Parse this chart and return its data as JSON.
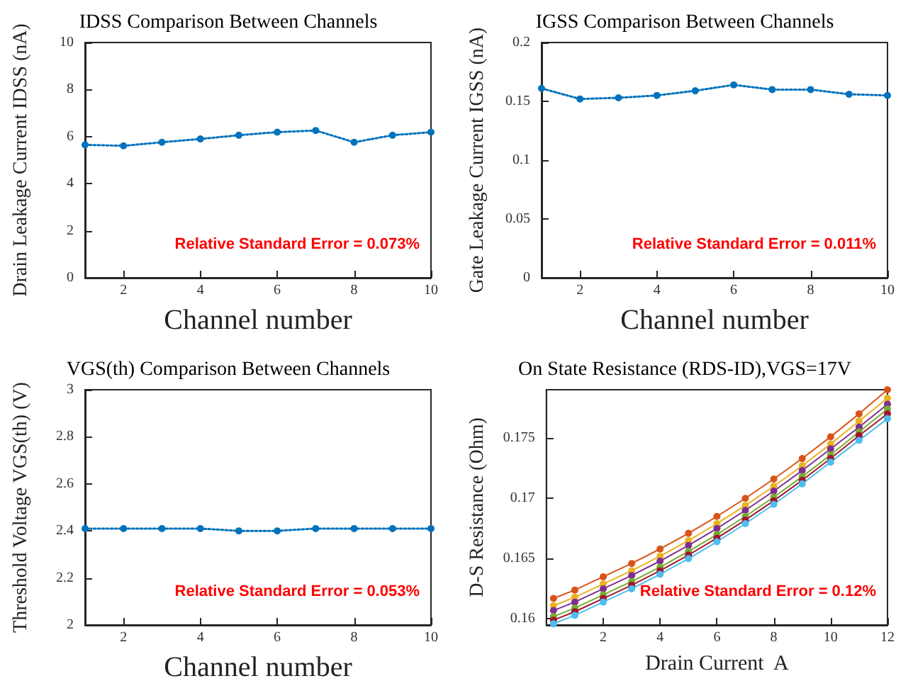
{
  "chart_data": [
    {
      "type": "line",
      "title": "IDSS Comparison Between Channels",
      "xlabel": "Channel number",
      "ylabel": "Drain Leakage Current IDSS (nA)",
      "x": [
        1,
        2,
        3,
        4,
        5,
        6,
        7,
        8,
        9,
        10
      ],
      "series": [
        {
          "color": "#0072bd",
          "values": [
            5.65,
            5.61,
            5.76,
            5.9,
            6.06,
            6.19,
            6.26,
            5.76,
            6.06,
            6.19
          ]
        }
      ],
      "xlim": [
        1,
        10
      ],
      "xticks": [
        2,
        4,
        6,
        8,
        10
      ],
      "ylim": [
        0,
        10
      ],
      "yticks": [
        0,
        2,
        4,
        6,
        8,
        10
      ],
      "grid": false,
      "marker": "circle",
      "line_style": "dotted",
      "annotations": [
        "Relative Standard Error = 0.073%"
      ]
    },
    {
      "type": "line",
      "title": "IGSS Comparison Between Channels",
      "xlabel": "Channel number",
      "ylabel": "Gate Leakage Current IGSS (nA)",
      "x": [
        1,
        2,
        3,
        4,
        5,
        6,
        7,
        8,
        9,
        10
      ],
      "series": [
        {
          "color": "#0072bd",
          "values": [
            0.161,
            0.152,
            0.153,
            0.155,
            0.159,
            0.164,
            0.16,
            0.16,
            0.156,
            0.155
          ]
        }
      ],
      "xlim": [
        1,
        10
      ],
      "xticks": [
        2,
        4,
        6,
        8,
        10
      ],
      "ylim": [
        0,
        0.2
      ],
      "yticks": [
        0,
        0.05,
        0.1,
        0.15,
        0.2
      ],
      "grid": false,
      "marker": "circle",
      "line_style": "dotted",
      "annotations": [
        "Relative Standard Error = 0.011%"
      ]
    },
    {
      "type": "line",
      "title": "VGS(th) Comparison Between Channels",
      "xlabel": "Channel number",
      "ylabel": "Threshold Voltage VGS(th) (V)",
      "x": [
        1,
        2,
        3,
        4,
        5,
        6,
        7,
        8,
        9,
        10
      ],
      "series": [
        {
          "color": "#0072bd",
          "values": [
            2.41,
            2.41,
            2.41,
            2.41,
            2.4,
            2.4,
            2.41,
            2.41,
            2.41,
            2.41
          ]
        }
      ],
      "xlim": [
        1,
        10
      ],
      "xticks": [
        2,
        4,
        6,
        8,
        10
      ],
      "ylim": [
        2,
        3
      ],
      "yticks": [
        2,
        2.2,
        2.4,
        2.6,
        2.8,
        3
      ],
      "grid": false,
      "marker": "circle",
      "line_style": "dotted",
      "annotations": [
        "Relative Standard Error = 0.053%"
      ]
    },
    {
      "type": "line",
      "title": "On State Resistance (RDS-ID),VGS=17V",
      "xlabel": "Drain Current  A",
      "ylabel": "D-S Resistance (Ohm)",
      "x": [
        0.25,
        1,
        2,
        3,
        4,
        5,
        6,
        7,
        8,
        9,
        10,
        11,
        12
      ],
      "series": [
        {
          "color": "#d95319",
          "values": [
            0.1617,
            0.1624,
            0.1635,
            0.1646,
            0.1658,
            0.1671,
            0.1685,
            0.17,
            0.1716,
            0.1733,
            0.1751,
            0.177,
            0.179
          ]
        },
        {
          "color": "#edb120",
          "values": [
            0.1611,
            0.1618,
            0.1629,
            0.164,
            0.1652,
            0.1665,
            0.1679,
            0.1694,
            0.171,
            0.1727,
            0.1745,
            0.1764,
            0.1783
          ]
        },
        {
          "color": "#7e2f8e",
          "values": [
            0.1607,
            0.1614,
            0.1625,
            0.1636,
            0.1648,
            0.1661,
            0.1675,
            0.169,
            0.1706,
            0.1723,
            0.1741,
            0.1759,
            0.1778
          ]
        },
        {
          "color": "#77ac30",
          "values": [
            0.1602,
            0.1609,
            0.162,
            0.1631,
            0.1643,
            0.1656,
            0.167,
            0.1685,
            0.1701,
            0.1718,
            0.1736,
            0.1755,
            0.1774
          ]
        },
        {
          "color": "#a2142f",
          "values": [
            0.1599,
            0.1606,
            0.1617,
            0.1628,
            0.164,
            0.1653,
            0.1667,
            0.1682,
            0.1698,
            0.1715,
            0.1733,
            0.1752,
            0.177
          ]
        },
        {
          "color": "#4dbeee",
          "values": [
            0.1596,
            0.1603,
            0.1614,
            0.1625,
            0.1637,
            0.165,
            0.1664,
            0.1679,
            0.1695,
            0.1712,
            0.173,
            0.1748,
            0.1766
          ]
        }
      ],
      "xlim": [
        0,
        12
      ],
      "xticks": [
        2,
        4,
        6,
        8,
        10,
        12
      ],
      "ylim": [
        0.1595,
        0.179
      ],
      "yticks": [
        0.16,
        0.165,
        0.17,
        0.175
      ],
      "grid": false,
      "marker": "circle",
      "line_style": "solid",
      "annotations": [
        "Relative Standard Error = 0.12%"
      ]
    }
  ]
}
